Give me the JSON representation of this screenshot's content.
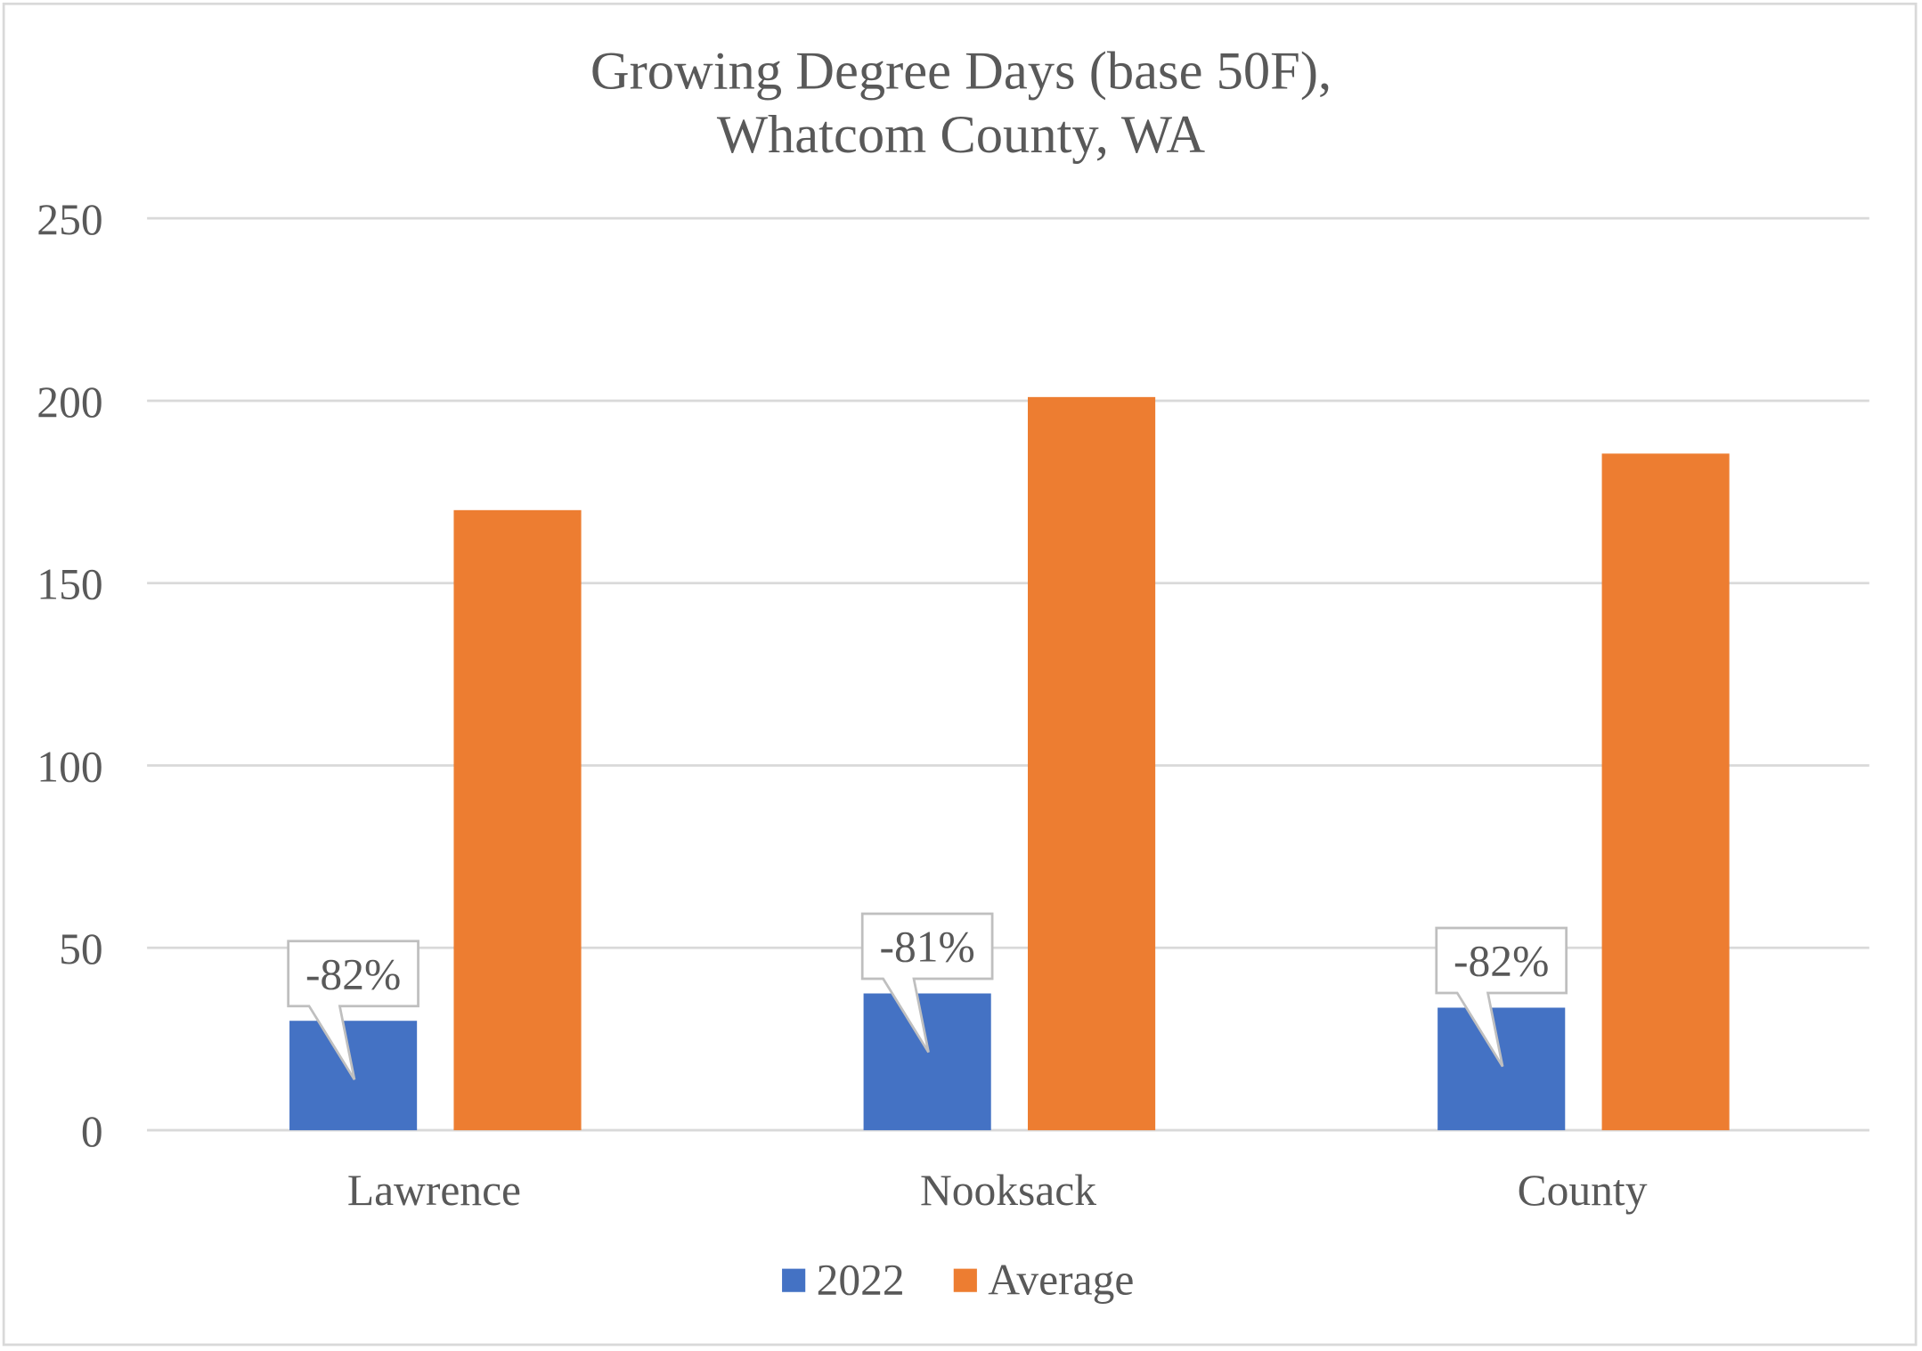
{
  "chart_data": {
    "type": "bar",
    "title": [
      "Growing Degree Days (base 50F),",
      "Whatcom County, WA"
    ],
    "xlabel": "",
    "ylabel": "",
    "categories": [
      "Lawrence",
      "Nooksack",
      "County"
    ],
    "series": [
      {
        "name": "2022",
        "values": [
          30,
          37.5,
          33.6
        ],
        "color": "#4472C4"
      },
      {
        "name": "Average",
        "values": [
          170,
          201,
          185.5
        ],
        "color": "#ED7D31"
      }
    ],
    "data_labels": [
      "-82%",
      "-81%",
      "-82%"
    ],
    "ylim": [
      0,
      250
    ],
    "yticks": [
      0,
      50,
      100,
      150,
      200,
      250
    ],
    "grid": true,
    "legend": "bottom"
  }
}
